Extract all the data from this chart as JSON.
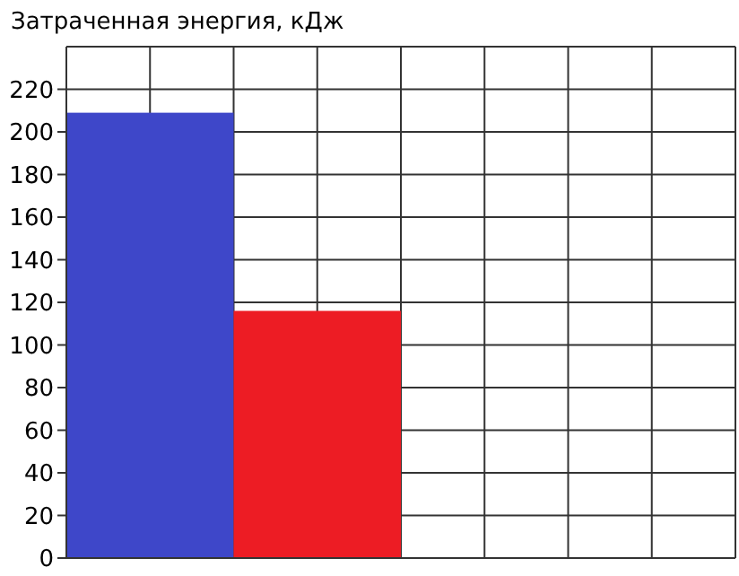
{
  "chart_data": {
    "type": "bar",
    "title": "Затраченная энергия, кДж",
    "categories": [
      null,
      null,
      null,
      null
    ],
    "values": [
      209,
      116,
      null,
      null
    ],
    "colors": [
      "#3e47c9",
      "#ed1c24",
      null,
      null
    ],
    "ylim": [
      0,
      240
    ],
    "yticks": [
      0,
      20,
      40,
      60,
      80,
      100,
      120,
      140,
      160,
      180,
      200,
      220
    ],
    "grid": true
  }
}
